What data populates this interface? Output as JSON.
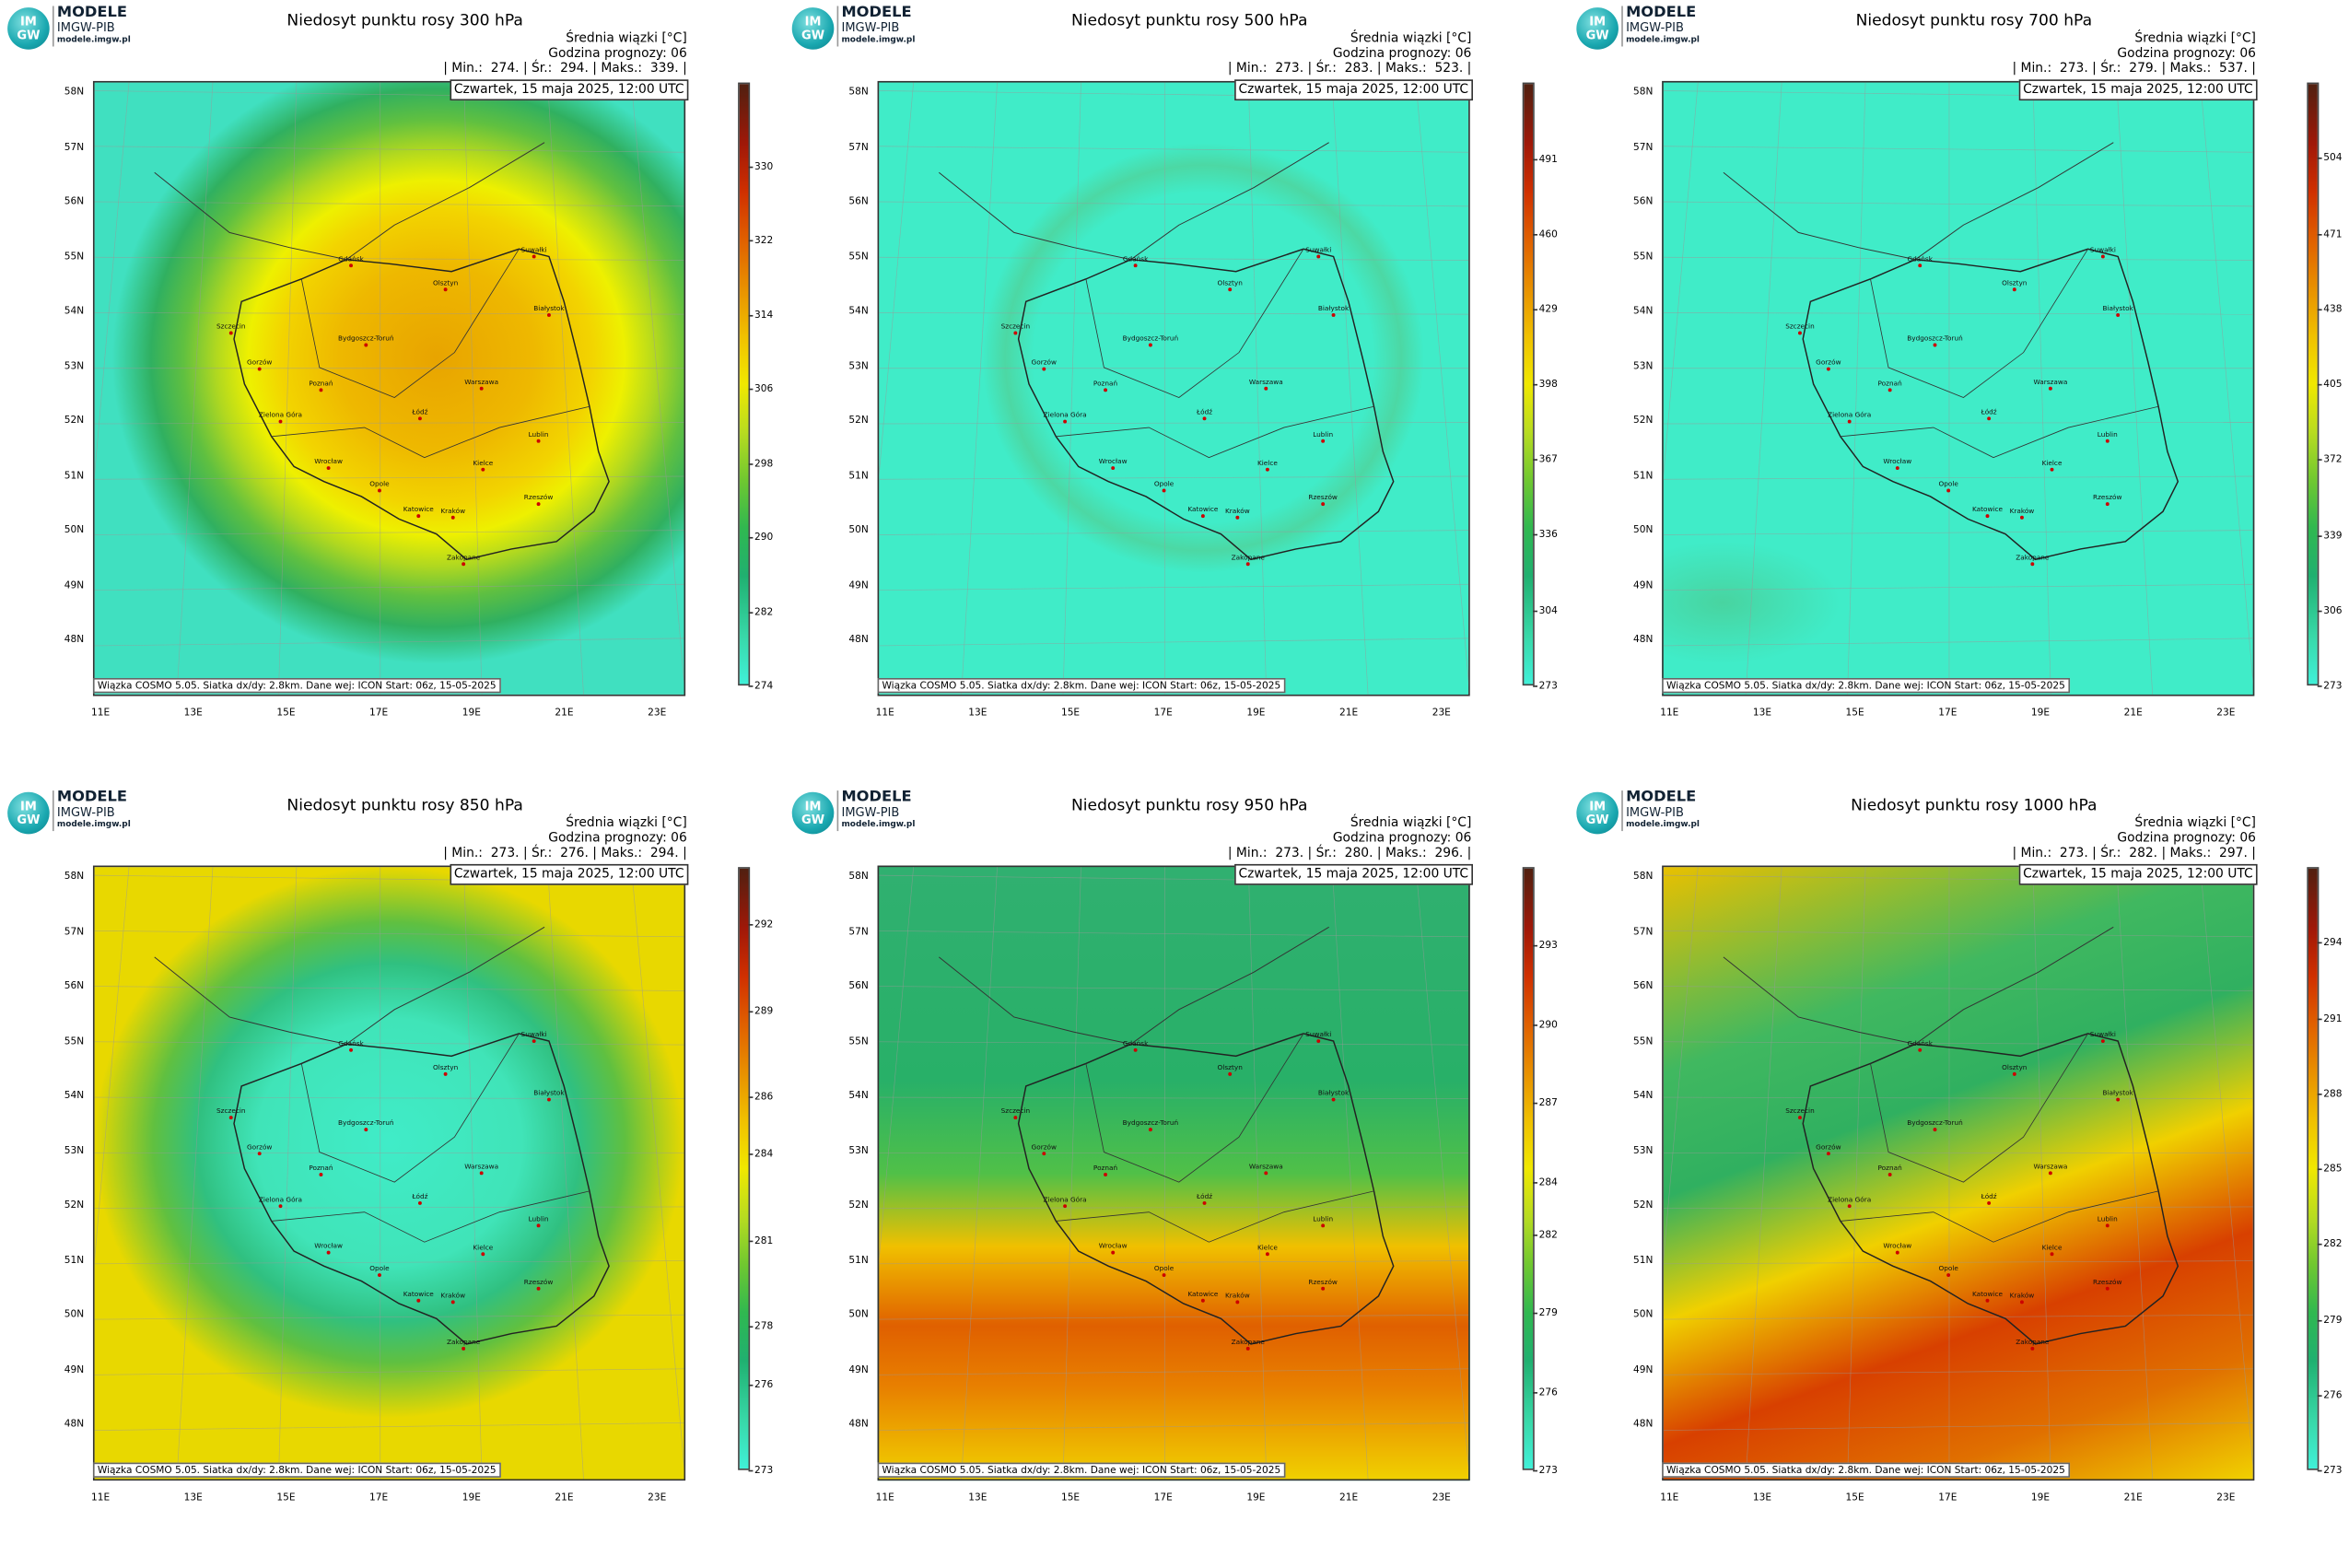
{
  "logo": {
    "icon_top": "IM",
    "icon_bottom": "GW",
    "name": "MODELE",
    "org": "IMGW-PIB",
    "url": "modele.imgw.pl"
  },
  "common": {
    "unit_label": "Średnia wiązki [°C]",
    "forecast": "Godzina prognozy: 06",
    "date": "Czwartek, 15 maja 2025, 12:00 UTC",
    "footer": "Wiązka COSMO 5.05. Siatka dx/dy: 2.8km. Dane wej: ICON Start: 06z, 15-05-2025",
    "lat_labels": [
      "58N",
      "57N",
      "56N",
      "55N",
      "54N",
      "53N",
      "52N",
      "51N",
      "50N",
      "49N",
      "48N"
    ],
    "lon_labels": [
      "11E",
      "13E",
      "15E",
      "17E",
      "19E",
      "21E",
      "23E"
    ],
    "cities": [
      "Gdańsk",
      "Olsztyn",
      "Suwałki",
      "Szczecin",
      "Bydgoszcz-Toruń",
      "Białystok",
      "Gorzów",
      "Poznań",
      "Warszawa",
      "Zielona Góra",
      "Łódź",
      "Lublin",
      "Wrocław",
      "Kielce",
      "Opole",
      "Rzeszów",
      "Katowice",
      "Kraków",
      "Zakopane"
    ]
  },
  "panels": [
    {
      "title": "Niedosyt punktu rosy 300 hPa",
      "stats": "| Min.:  274. | Śr.:  294. | Maks.:  339. |",
      "colorbar_lim": [
        274,
        339
      ],
      "colorbar_ticks": [
        274,
        282,
        290,
        298,
        306,
        314,
        322,
        330
      ]
    },
    {
      "title": "Niedosyt punktu rosy 500 hPa",
      "stats": "| Min.:  273. | Śr.:  283. | Maks.:  523. |",
      "colorbar_lim": [
        273,
        523
      ],
      "colorbar_ticks": [
        273,
        304,
        336,
        367,
        398,
        429,
        460,
        491
      ]
    },
    {
      "title": "Niedosyt punktu rosy 700 hPa",
      "stats": "| Min.:  273. | Śr.:  279. | Maks.:  537. |",
      "colorbar_lim": [
        273,
        537
      ],
      "colorbar_ticks": [
        273,
        306,
        339,
        372,
        405,
        438,
        471,
        504
      ]
    },
    {
      "title": "Niedosyt punktu rosy 850 hPa",
      "stats": "| Min.:  273. | Śr.:  276. | Maks.:  294. |",
      "colorbar_lim": [
        273,
        294
      ],
      "colorbar_ticks": [
        273,
        276,
        278,
        281,
        284,
        286,
        289,
        292
      ]
    },
    {
      "title": "Niedosyt punktu rosy 950 hPa",
      "stats": "| Min.:  273. | Śr.:  280. | Maks.:  296. |",
      "colorbar_lim": [
        273,
        296
      ],
      "colorbar_ticks": [
        273,
        276,
        279,
        282,
        284,
        287,
        290,
        293
      ]
    },
    {
      "title": "Niedosyt punktu rosy 1000 hPa",
      "stats": "| Min.:  273. | Śr.:  282. | Maks.:  297. |",
      "colorbar_lim": [
        273,
        297
      ],
      "colorbar_ticks": [
        273,
        276,
        279,
        282,
        285,
        288,
        291,
        294
      ]
    }
  ]
}
